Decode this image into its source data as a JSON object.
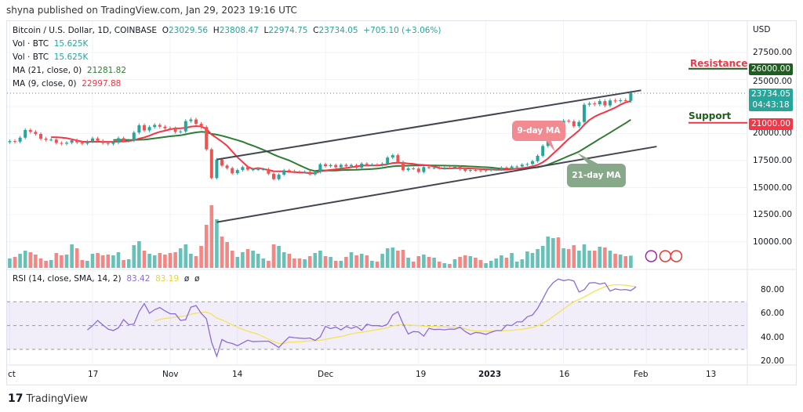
{
  "publisher": "shyna published on TradingView.com, Jan 29, 2023 19:16 UTC",
  "legend": {
    "symbol": "Bitcoin / U.S. Dollar, 1D, COINBASE",
    "o_label": "O",
    "o": "23029.56",
    "h_label": "H",
    "h": "23808.47",
    "l_label": "L",
    "l": "22974.75",
    "c_label": "C",
    "c": "23734.05",
    "change": "+705.10 (+3.06%)",
    "vol1_label": "Vol · BTC",
    "vol1": "15.625K",
    "vol2_label": "Vol · BTC",
    "vol2": "15.625K",
    "ma21_label": "MA (21, close, 0)",
    "ma21": "21281.82",
    "ma9_label": "MA (9, close, 0)",
    "ma9": "22997.88"
  },
  "rsi_legend": {
    "label": "RSI (14, close, SMA, 14, 2)",
    "rsi": "83.42",
    "sma": "83.19",
    "na1": "ø",
    "na2": "ø"
  },
  "axis": {
    "currency": "USD",
    "price_ticks": [
      "27500.00",
      "25000.00",
      "20000.00",
      "17500.00",
      "15000.00",
      "12500.00",
      "10000.00"
    ],
    "rsi_ticks": [
      "80.00",
      "60.00",
      "40.00",
      "20.00"
    ],
    "time_ticks": [
      "ct",
      "17",
      "Nov",
      "14",
      "Dec",
      "19",
      "2023",
      "16",
      "Feb",
      "13"
    ]
  },
  "tags": {
    "resistance": "26000.00",
    "last_price": "23734.05",
    "countdown": "04:43:18",
    "support": "21000.00"
  },
  "annotations": {
    "resistance": "Resistance",
    "support": "Support",
    "ma9": "9-day MA",
    "ma21": "21-day MA"
  },
  "footer": {
    "brand": "TradingView"
  },
  "colors": {
    "up": "#26a69a",
    "down": "#ef5350",
    "ma9": "#f23645",
    "ma21": "#2e7d32",
    "rsi": "#8b6bd6",
    "rsi_sma": "#f2e35a",
    "resistance": "#1e5e20",
    "support": "#f23645"
  },
  "chart_data": {
    "type": "candlestick",
    "start_date": "2022-10-01",
    "end_date": "2023-01-29",
    "closes": [
      19300,
      19250,
      19620,
      20330,
      20160,
      19960,
      19530,
      19420,
      19440,
      19130,
      19060,
      19150,
      19380,
      19180,
      19070,
      19270,
      19550,
      19330,
      19120,
      19040,
      19160,
      19570,
      19330,
      19360,
      20090,
      20770,
      20290,
      20600,
      20800,
      20630,
      20490,
      20480,
      20150,
      20200,
      21150,
      21300,
      20900,
      20600,
      18540,
      15880,
      17590,
      17040,
      16800,
      16330,
      16620,
      16900,
      16660,
      16680,
      16700,
      16700,
      16280,
      15780,
      16200,
      16600,
      16520,
      16460,
      16430,
      16460,
      16220,
      16440,
      17160,
      16980,
      17090,
      16880,
      17110,
      16970,
      17090,
      16840,
      17220,
      17130,
      17130,
      17090,
      17210,
      17780,
      18000,
      17360,
      16630,
      16780,
      16760,
      16440,
      16900,
      16820,
      16830,
      16800,
      16840,
      16830,
      16920,
      16710,
      16550,
      16630,
      16600,
      16540,
      16610,
      16670,
      16670,
      16850,
      16830,
      16950,
      16950,
      17120,
      17180,
      17440,
      17940,
      18850,
      19930,
      20950,
      20880,
      21180,
      21130,
      20680,
      21070,
      22670,
      22780,
      22710,
      23000,
      22600,
      23060,
      23010,
      23080,
      23030,
      23734.05
    ],
    "volumes_k": [
      12,
      14,
      18,
      22,
      20,
      17,
      12,
      9,
      10,
      19,
      16,
      17,
      30,
      25,
      10,
      9,
      18,
      19,
      16,
      17,
      16,
      20,
      10,
      11,
      29,
      34,
      22,
      18,
      16,
      19,
      17,
      19,
      20,
      25,
      30,
      18,
      15,
      28,
      55,
      80,
      62,
      40,
      33,
      22,
      14,
      20,
      24,
      22,
      18,
      12,
      9,
      30,
      28,
      20,
      18,
      12,
      12,
      11,
      15,
      19,
      22,
      15,
      14,
      9,
      9,
      14,
      20,
      16,
      18,
      16,
      9,
      8,
      18,
      25,
      26,
      22,
      23,
      13,
      8,
      15,
      17,
      14,
      13,
      8,
      6,
      5,
      11,
      14,
      16,
      15,
      13,
      10,
      6,
      9,
      12,
      16,
      13,
      19,
      8,
      11,
      21,
      19,
      24,
      28,
      40,
      38,
      39,
      25,
      24,
      29,
      22,
      30,
      22,
      22,
      27,
      26,
      22,
      18,
      17,
      15,
      15.625
    ],
    "trend_lines": [
      {
        "from": [
          "2022-11-10",
          17600
        ],
        "to": [
          "2023-01-31",
          24000
        ]
      },
      {
        "from": [
          "2022-11-10",
          11800
        ],
        "to": [
          "2023-02-03",
          18800
        ]
      }
    ],
    "horizontal_levels": {
      "resistance": 26000,
      "support": 21000
    },
    "ylim": [
      8000,
      29000
    ],
    "rsi_bands": [
      30,
      70
    ],
    "rsi_ylim": [
      15,
      95
    ],
    "grid": true
  }
}
